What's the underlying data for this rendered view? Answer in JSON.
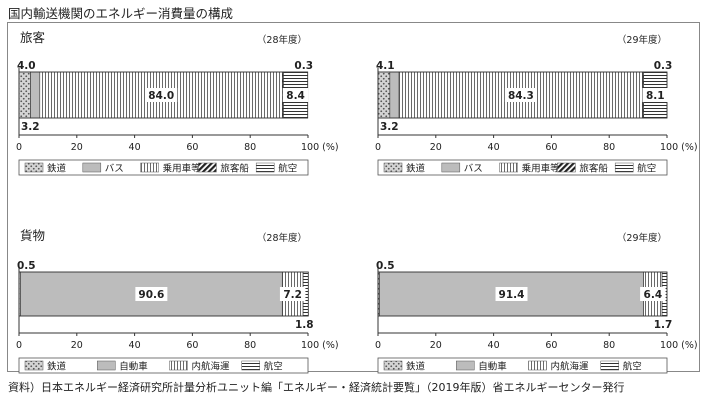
{
  "page": {
    "title": "国内輸送機関のエネルギー消費量の構成",
    "source": "資料）日本エネルギー経済研究所計量分析ユニット編「エネルギー・経済統計要覧」（2019年版）省エネルギーセンター発行"
  },
  "sections": [
    {
      "title": "旅客"
    },
    {
      "title": "貨物"
    }
  ],
  "colors": {
    "gray": "#bcbcbc",
    "light_gray": "#e3e3e3",
    "line": "#333333",
    "frame": "#888888"
  },
  "chart_data": [
    {
      "type": "bar",
      "orientation": "horizontal",
      "stacked": true,
      "section": "旅客",
      "year_label": "（28年度）",
      "categories": [
        "鉄道",
        "バス",
        "乗用車等",
        "旅客船",
        "航空"
      ],
      "values": [
        4.0,
        3.2,
        84.0,
        0.3,
        8.4
      ],
      "value_labels": [
        "4.0",
        "3.2",
        "84.0",
        "0.3",
        "8.4"
      ],
      "xlim": [
        0,
        100
      ],
      "xticks": [
        0,
        20,
        40,
        60,
        80,
        100
      ],
      "xunit": "(%)",
      "legend": {
        "position": "bottom",
        "entries": [
          "鉄道",
          "バス",
          "乗用車等",
          "旅客船",
          "航空"
        ]
      }
    },
    {
      "type": "bar",
      "orientation": "horizontal",
      "stacked": true,
      "section": "旅客",
      "year_label": "（29年度）",
      "categories": [
        "鉄道",
        "バス",
        "乗用車等",
        "旅客船",
        "航空"
      ],
      "values": [
        4.1,
        3.2,
        84.3,
        0.3,
        8.1
      ],
      "value_labels": [
        "4.1",
        "3.2",
        "84.3",
        "0.3",
        "8.1"
      ],
      "xlim": [
        0,
        100
      ],
      "xticks": [
        0,
        20,
        40,
        60,
        80,
        100
      ],
      "xunit": "(%)",
      "legend": {
        "position": "bottom",
        "entries": [
          "鉄道",
          "バス",
          "乗用車等",
          "旅客船",
          "航空"
        ]
      }
    },
    {
      "type": "bar",
      "orientation": "horizontal",
      "stacked": true,
      "section": "貨物",
      "year_label": "（28年度）",
      "categories": [
        "鉄道",
        "自動車",
        "内航海運",
        "航空"
      ],
      "values": [
        0.5,
        90.6,
        7.2,
        1.8
      ],
      "value_labels": [
        "0.5",
        "90.6",
        "7.2",
        "1.8"
      ],
      "xlim": [
        0,
        100
      ],
      "xticks": [
        0,
        20,
        40,
        60,
        80,
        100
      ],
      "xunit": "(%)",
      "legend": {
        "position": "bottom",
        "entries": [
          "鉄道",
          "自動車",
          "内航海運",
          "航空"
        ]
      }
    },
    {
      "type": "bar",
      "orientation": "horizontal",
      "stacked": true,
      "section": "貨物",
      "year_label": "（29年度）",
      "categories": [
        "鉄道",
        "自動車",
        "内航海運",
        "航空"
      ],
      "values": [
        0.5,
        91.4,
        6.4,
        1.7
      ],
      "value_labels": [
        "0.5",
        "91.4",
        "6.4",
        "1.7"
      ],
      "xlim": [
        0,
        100
      ],
      "xticks": [
        0,
        20,
        40,
        60,
        80,
        100
      ],
      "xunit": "(%)",
      "legend": {
        "position": "bottom",
        "entries": [
          "鉄道",
          "自動車",
          "内航海運",
          "航空"
        ]
      }
    }
  ]
}
